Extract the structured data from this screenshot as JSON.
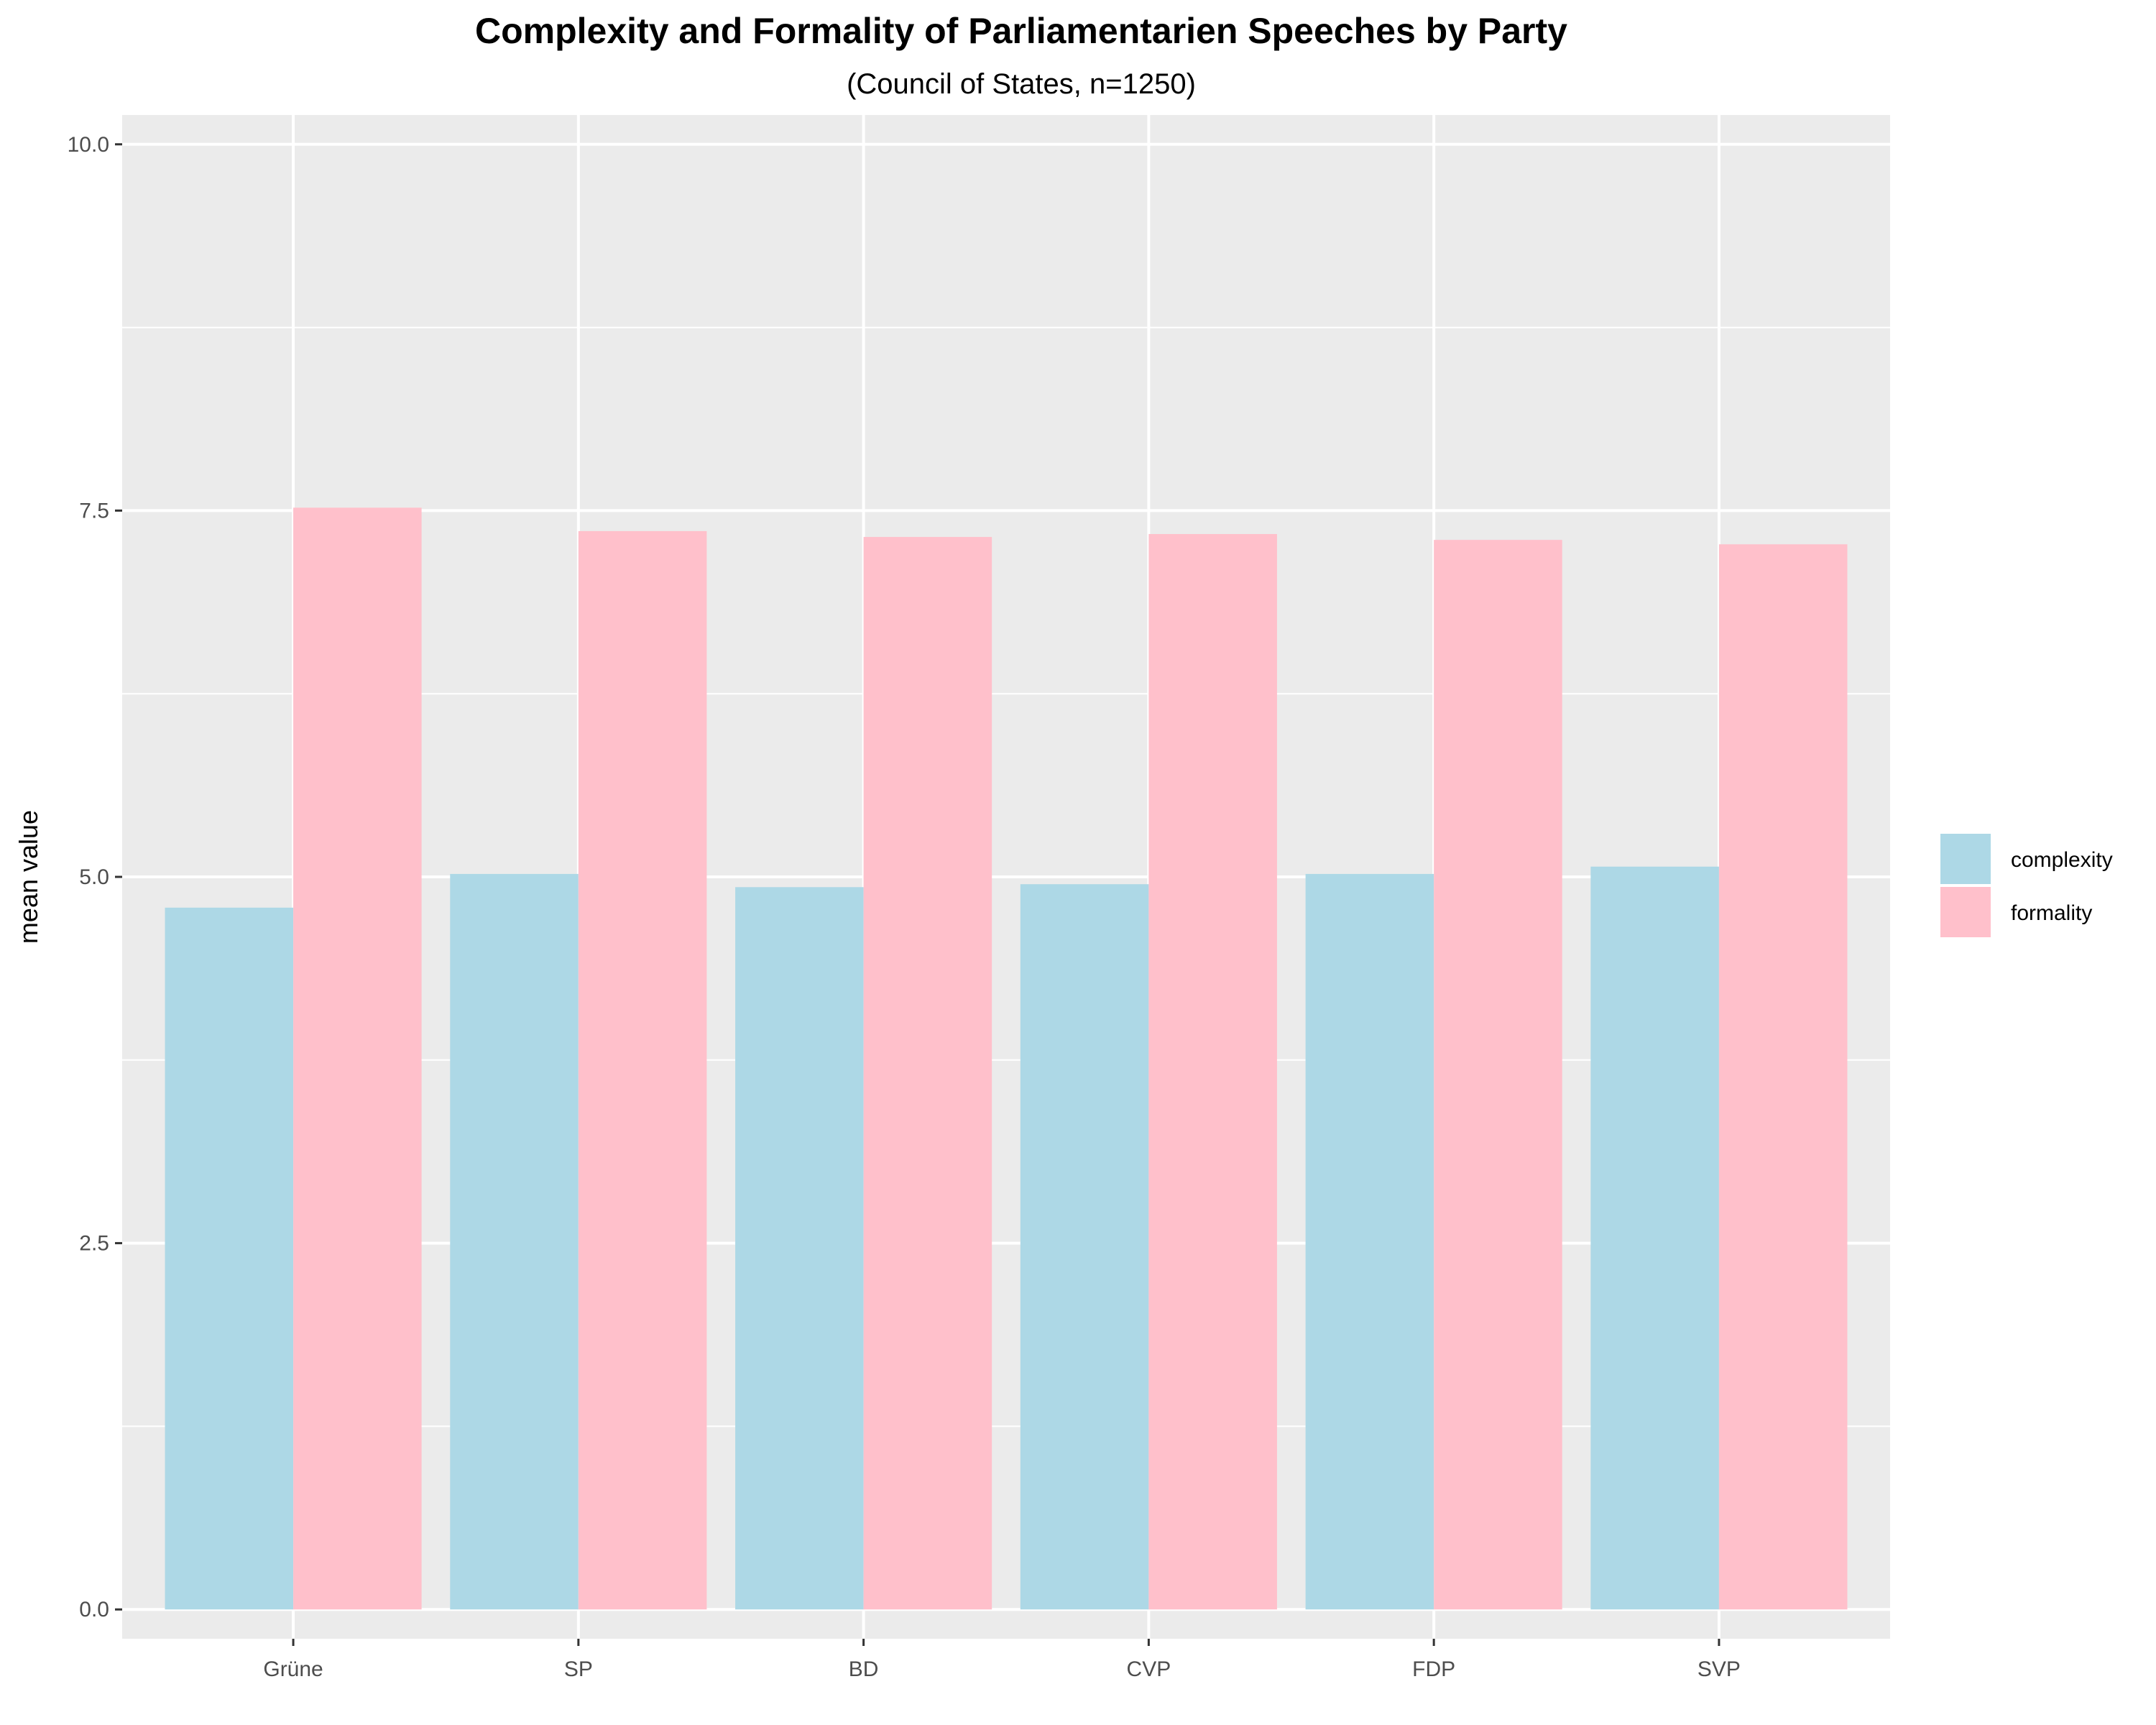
{
  "chart_data": {
    "type": "bar",
    "title": "Complexity and Formality of Parliamentarien Speeches by Party",
    "subtitle": "(Council of States, n=1250)",
    "xlabel": "",
    "ylabel": "mean value",
    "categories": [
      "Grüne",
      "SP",
      "BD",
      "CVP",
      "FDP",
      "SVP"
    ],
    "series": [
      {
        "name": "complexity",
        "color": "#add8e6",
        "values": [
          4.79,
          5.02,
          4.93,
          4.95,
          5.02,
          5.07
        ]
      },
      {
        "name": "formality",
        "color": "#ffc0cb",
        "values": [
          7.52,
          7.36,
          7.32,
          7.34,
          7.3,
          7.27
        ]
      }
    ],
    "ylim": [
      -0.2,
      10.2
    ],
    "yticks": [
      0.0,
      2.5,
      5.0,
      7.5,
      10.0
    ],
    "ytick_labels": [
      "0.0",
      "2.5",
      "5.0",
      "7.5",
      "10.0"
    ],
    "grid": true,
    "legend_position": "right",
    "panel_background": "#ebebeb"
  }
}
